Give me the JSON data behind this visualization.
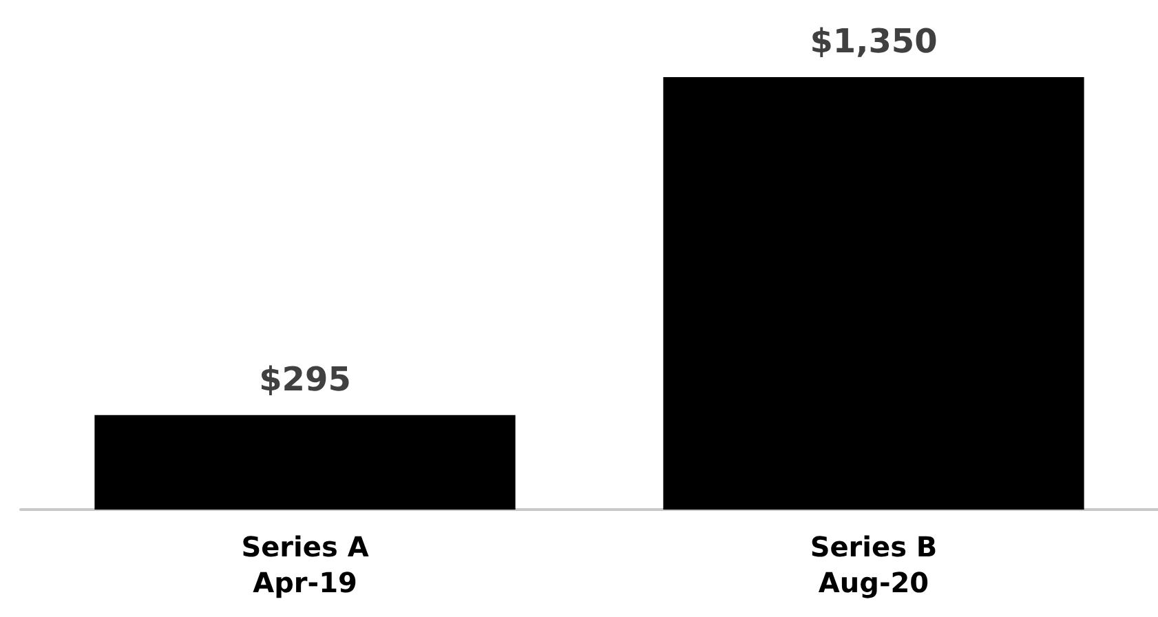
{
  "chart_data": {
    "type": "bar",
    "categories": [
      "Series A\nApr-19",
      "Series B\nAug-20"
    ],
    "values": [
      295,
      1350
    ],
    "value_labels": [
      "$295",
      "$1,350"
    ],
    "color": "#000000"
  }
}
